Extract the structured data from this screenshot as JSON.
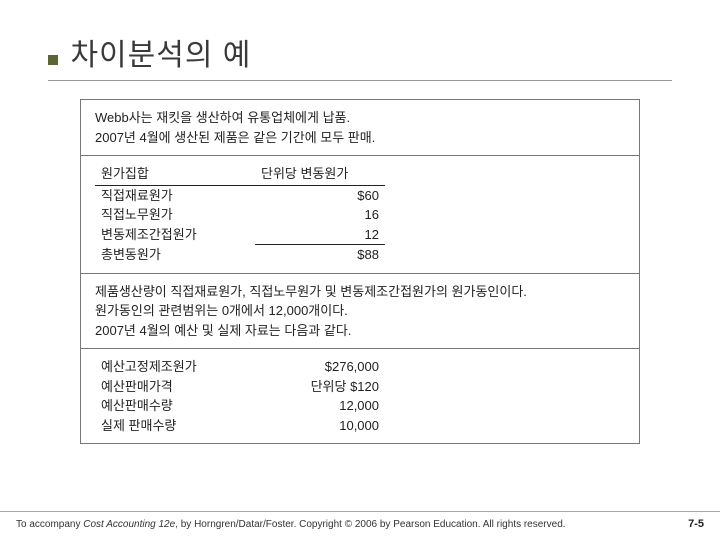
{
  "title": "차이분석의 예",
  "intro": {
    "line1": "Webb사는 재킷을 생산하여 유통업체에게 납품.",
    "line2": "2007년 4월에 생산된 제품은 같은 기간에 모두 판매."
  },
  "costTable": {
    "headers": {
      "label": "원가집합",
      "value": "단위당 변동원가"
    },
    "rows": [
      {
        "label": "직접재료원가",
        "value": "$60"
      },
      {
        "label": "직접노무원가",
        "value": "16"
      },
      {
        "label": "변동제조간접원가",
        "value": "12"
      }
    ],
    "total": {
      "label": "총변동원가",
      "value": "$88"
    }
  },
  "notes": {
    "line1": "제품생산량이 직접재료원가, 직접노무원가 및 변동제조간접원가의 원가동인이다.",
    "line2": "원가동인의 관련범위는 0개에서 12,000개이다.",
    "line3": "2007년 4월의 예산 및 실제 자료는 다음과 같다."
  },
  "budgetTable": {
    "rows": [
      {
        "label": "예산고정제조원가",
        "value": "$276,000"
      },
      {
        "label": "예산판매가격",
        "value": "단위당 $120"
      },
      {
        "label": "예산판매수량",
        "value": "12,000"
      },
      {
        "label": "실제 판매수량",
        "value": "10,000"
      }
    ]
  },
  "footer": {
    "prefix": "To accompany ",
    "book": "Cost Accounting 12e",
    "suffix": ", by Horngren/Datar/Foster. Copyright © 2006 by Pearson Education. All rights reserved.",
    "page": "7-5"
  }
}
